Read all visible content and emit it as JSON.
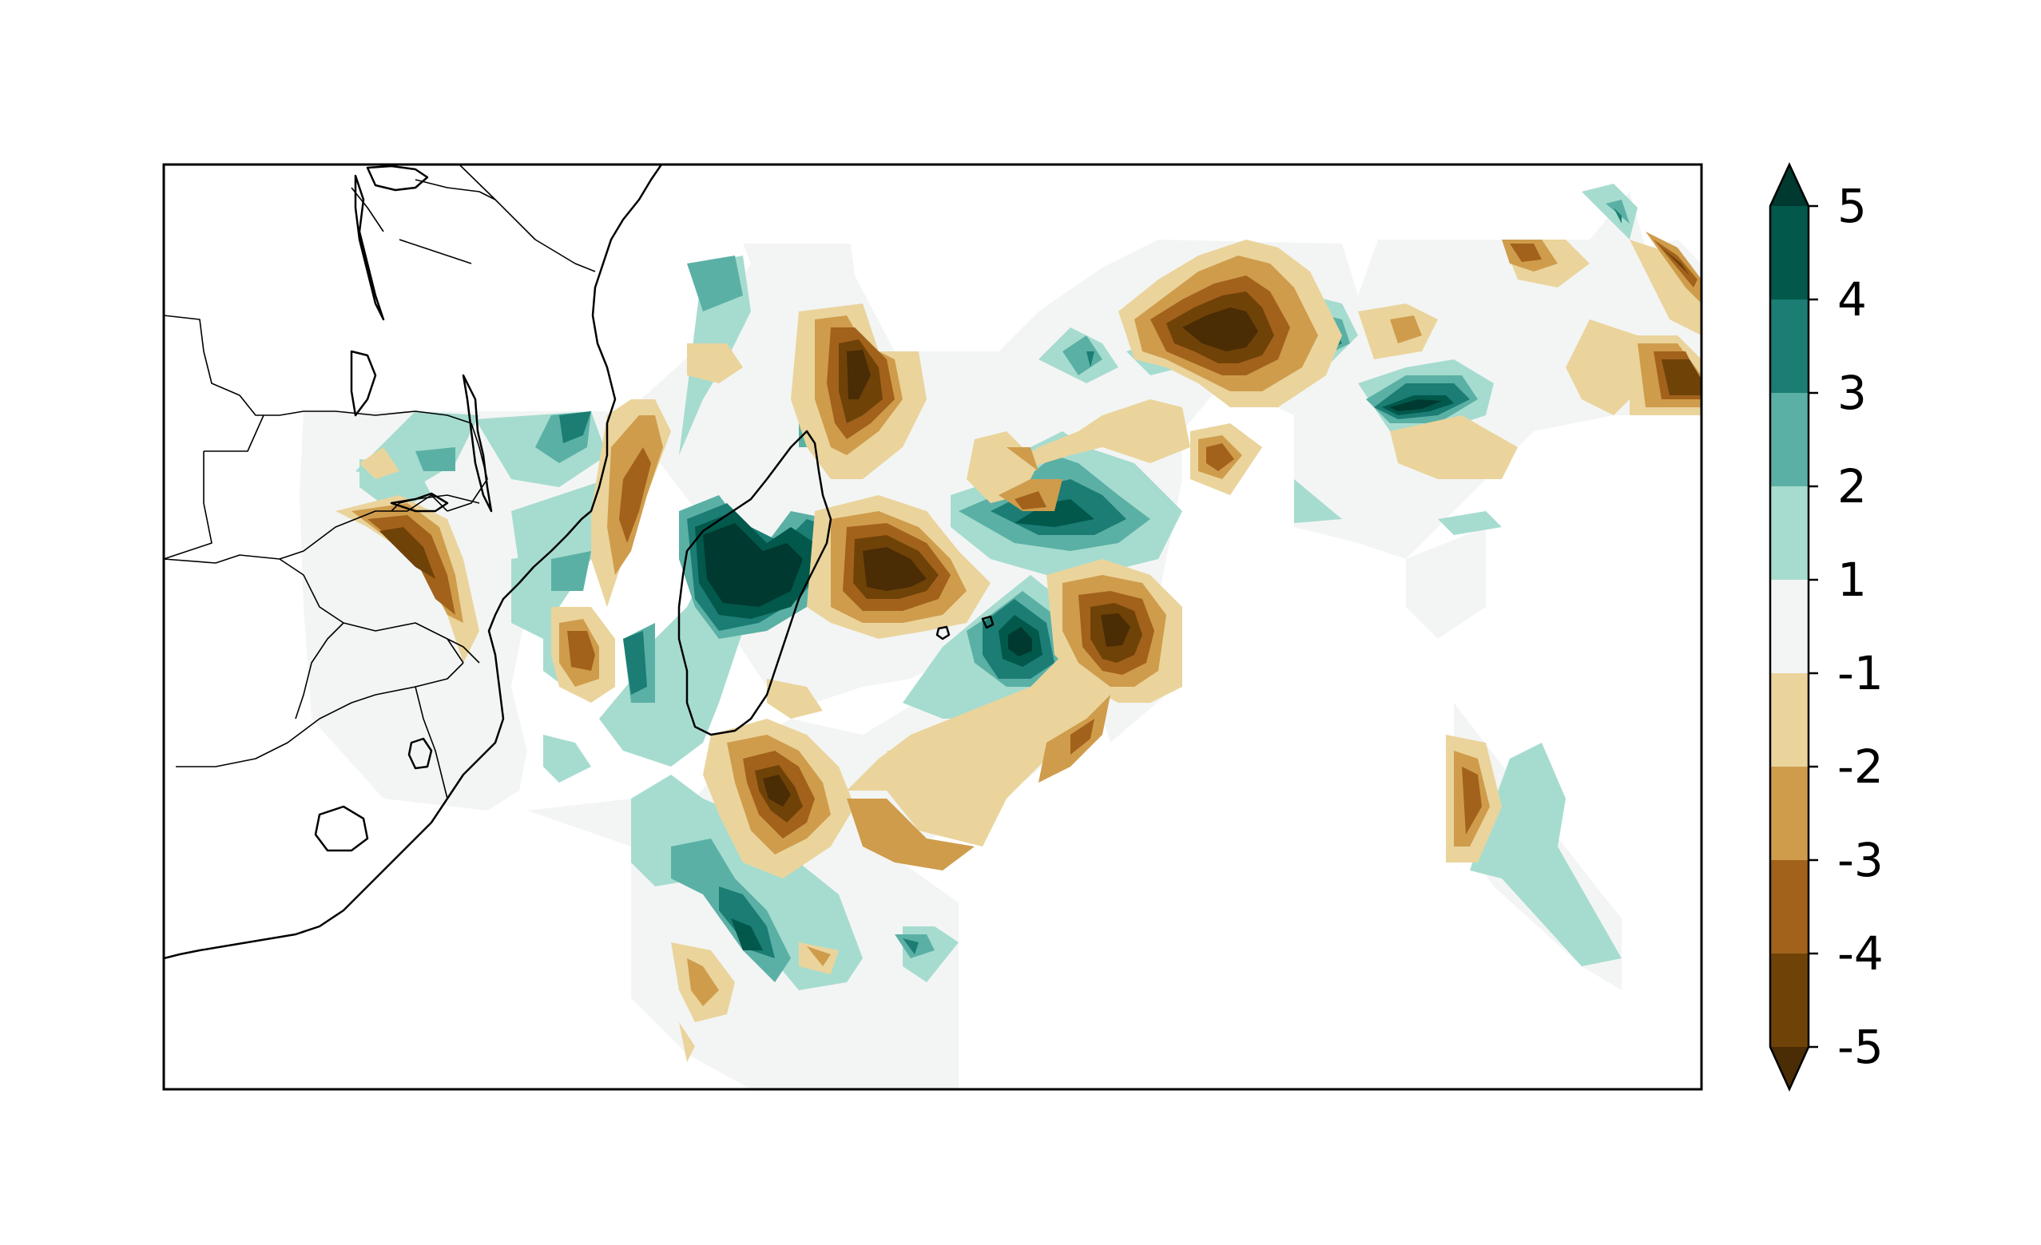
{
  "figure": {
    "type": "filled-contour-map",
    "region": "Southwest Indian Ocean, southeastern Africa and Madagascar",
    "colormap": "BrBG"
  },
  "colorbar": {
    "orientation": "vertical",
    "placement": "right",
    "extend": "both",
    "ticks": [
      {
        "value": 5,
        "label": "5"
      },
      {
        "value": 4,
        "label": "4"
      },
      {
        "value": 3,
        "label": "3"
      },
      {
        "value": 2,
        "label": "2"
      },
      {
        "value": 1,
        "label": "1"
      },
      {
        "value": -1,
        "label": "-1"
      },
      {
        "value": -2,
        "label": "-2"
      },
      {
        "value": -3,
        "label": "-3"
      },
      {
        "value": -4,
        "label": "-4"
      },
      {
        "value": -5,
        "label": "-5"
      }
    ],
    "levels": [
      {
        "range": "above 5",
        "color": "#00392f"
      },
      {
        "range": "4 to 5",
        "color": "#01584b"
      },
      {
        "range": "3 to 4",
        "color": "#1b7d74"
      },
      {
        "range": "2 to 3",
        "color": "#5bb0a5"
      },
      {
        "range": "1 to 2",
        "color": "#a6dccf"
      },
      {
        "range": "-1 to 1",
        "color": "#f3f5f4"
      },
      {
        "range": "-2 to -1",
        "color": "#ead49c"
      },
      {
        "range": "-3 to -2",
        "color": "#cf9c4c"
      },
      {
        "range": "-4 to -3",
        "color": "#a2621b"
      },
      {
        "range": "-5 to -4",
        "color": "#6f4208"
      },
      {
        "range": "below -5",
        "color": "#4a2c05"
      }
    ]
  }
}
